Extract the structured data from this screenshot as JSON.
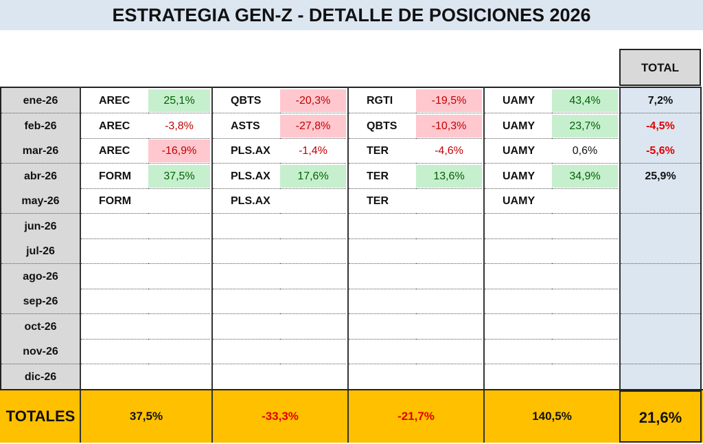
{
  "title": "ESTRATEGIA GEN-Z -  DETALLE DE POSICIONES 2026",
  "total_header": "TOTAL",
  "rows": [
    {
      "month": "ene-26",
      "positions": [
        {
          "ticker": "AREC",
          "ret": "25,1%",
          "tone": "pos"
        },
        {
          "ticker": "QBTS",
          "ret": "-20,3%",
          "tone": "neg"
        },
        {
          "ticker": "RGTI",
          "ret": "-19,5%",
          "tone": "neg"
        },
        {
          "ticker": "UAMY",
          "ret": "43,4%",
          "tone": "pos"
        }
      ],
      "total": "7,2%",
      "total_tone": "black"
    },
    {
      "month": "feb-26",
      "positions": [
        {
          "ticker": "AREC",
          "ret": "-3,8%",
          "tone": "negtext"
        },
        {
          "ticker": "ASTS",
          "ret": "-27,8%",
          "tone": "neg"
        },
        {
          "ticker": "QBTS",
          "ret": "-10,3%",
          "tone": "neg"
        },
        {
          "ticker": "UAMY",
          "ret": "23,7%",
          "tone": "pos"
        }
      ],
      "total": "-4,5%",
      "total_tone": "red"
    },
    {
      "month": "mar-26",
      "positions": [
        {
          "ticker": "AREC",
          "ret": "-16,9%",
          "tone": "neg"
        },
        {
          "ticker": "PLS.AX",
          "ret": "-1,4%",
          "tone": "negtext"
        },
        {
          "ticker": "TER",
          "ret": "-4,6%",
          "tone": "negtext"
        },
        {
          "ticker": "UAMY",
          "ret": "0,6%",
          "tone": "flat"
        }
      ],
      "total": "-5,6%",
      "total_tone": "red"
    },
    {
      "month": "abr-26",
      "positions": [
        {
          "ticker": "FORM",
          "ret": "37,5%",
          "tone": "pos"
        },
        {
          "ticker": "PLS.AX",
          "ret": "17,6%",
          "tone": "pos"
        },
        {
          "ticker": "TER",
          "ret": "13,6%",
          "tone": "pos"
        },
        {
          "ticker": "UAMY",
          "ret": "34,9%",
          "tone": "pos"
        }
      ],
      "total": "25,9%",
      "total_tone": "black"
    },
    {
      "month": "may-26",
      "positions": [
        {
          "ticker": "FORM",
          "ret": "",
          "tone": "flat"
        },
        {
          "ticker": "PLS.AX",
          "ret": "",
          "tone": "flat"
        },
        {
          "ticker": "TER",
          "ret": "",
          "tone": "flat"
        },
        {
          "ticker": "UAMY",
          "ret": "",
          "tone": "flat"
        }
      ],
      "total": "",
      "total_tone": "black"
    },
    {
      "month": "jun-26",
      "positions": [],
      "total": "",
      "total_tone": "black"
    },
    {
      "month": "jul-26",
      "positions": [],
      "total": "",
      "total_tone": "black"
    },
    {
      "month": "ago-26",
      "positions": [],
      "total": "",
      "total_tone": "black"
    },
    {
      "month": "sep-26",
      "positions": [],
      "total": "",
      "total_tone": "black"
    },
    {
      "month": "oct-26",
      "positions": [],
      "total": "",
      "total_tone": "black"
    },
    {
      "month": "nov-26",
      "positions": [],
      "total": "",
      "total_tone": "black"
    },
    {
      "month": "dic-26",
      "positions": [],
      "total": "",
      "total_tone": "black"
    }
  ],
  "totals": {
    "label": "TOTALES",
    "columns": [
      {
        "value": "37,5%",
        "tone": "black"
      },
      {
        "value": "-33,3%",
        "tone": "red"
      },
      {
        "value": "-21,7%",
        "tone": "red"
      },
      {
        "value": "140,5%",
        "tone": "black"
      }
    ],
    "grand": "21,6%"
  },
  "colors": {
    "positive_fill": "#c6efce",
    "positive_text": "#006100",
    "negative_fill": "#ffc7ce",
    "negative_text": "#c00000",
    "totals_row": "#ffc000",
    "total_column": "#dce6f1",
    "month_column": "#d9d9d9"
  }
}
